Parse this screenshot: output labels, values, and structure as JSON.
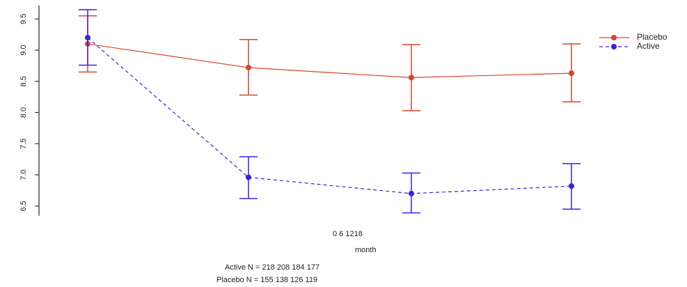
{
  "chart_data": {
    "type": "line",
    "title": "",
    "xlabel": "month",
    "ylabel": "",
    "x": [
      0,
      6,
      12,
      18
    ],
    "x_tick_text": "0 6 1218",
    "ylim": [
      6.4,
      9.65
    ],
    "y_ticks": [
      6.5,
      7.0,
      7.5,
      8.0,
      8.5,
      9.0,
      9.5
    ],
    "y_tick_labels": [
      "6.5",
      "7.0",
      "7.5",
      "8.0",
      "8.5",
      "9.0",
      "9.5"
    ],
    "error_bars": true,
    "grid": false,
    "legend_position": "top-right",
    "series": [
      {
        "name": "Placebo",
        "color": "#d9432a",
        "line_style": "solid",
        "values": [
          9.1,
          8.72,
          8.56,
          8.63
        ],
        "lower": [
          8.65,
          8.28,
          8.03,
          8.17
        ],
        "upper": [
          9.55,
          9.17,
          9.09,
          9.1
        ]
      },
      {
        "name": "Active",
        "color": "#3b1ee8",
        "line_style": "dashed",
        "values": [
          9.2,
          6.96,
          6.7,
          6.82
        ],
        "lower": [
          8.76,
          6.62,
          6.39,
          6.45
        ],
        "upper": [
          9.65,
          7.29,
          7.03,
          7.18
        ]
      }
    ]
  },
  "annotations": {
    "active_n": "Active N = 218 208 184 177",
    "placebo_n": "Placebo N = 155 138 126 119"
  }
}
